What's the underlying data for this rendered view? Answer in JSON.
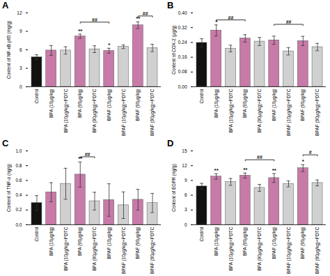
{
  "chart_data": [
    {
      "type": "bar",
      "title": "A",
      "ylabel": "Content of NF-κB p65 (mg/g)",
      "categories": [
        "Control",
        "BPA (10μg/kg)",
        "BPA (10μg/kg)+PDTC",
        "BPA (90μg/kg)",
        "BPA (90μg/kg)+PDTC",
        "BPAF (10μg/kg)",
        "BPAF (10μg/kg)+PDTC",
        "BPAF (90μg/kg)",
        "BPAF (90μg/kg)+PDTC"
      ],
      "values": [
        4.8,
        5.9,
        5.9,
        8.2,
        6.1,
        5.85,
        6.5,
        10.0,
        6.3
      ],
      "errors": [
        0.4,
        0.8,
        0.6,
        0.35,
        0.55,
        0.4,
        0.3,
        0.55,
        0.6
      ],
      "colors": [
        "#111111",
        "#c87aa8",
        "#d0d0d0",
        "#c87aa8",
        "#d0d0d0",
        "#c87aa8",
        "#d0d0d0",
        "#c87aa8",
        "#d0d0d0"
      ],
      "ylim": [
        0,
        12
      ],
      "yticks": [
        0,
        3,
        6,
        9,
        12
      ],
      "annotations": [
        {
          "text": "**",
          "category": "BPA (90μg/kg)"
        },
        {
          "text": "*",
          "category": "BPAF (10μg/kg)"
        },
        {
          "text": "**",
          "category": "BPAF (90μg/kg)"
        }
      ],
      "brackets": [
        {
          "from": "BPA (90μg/kg)",
          "to": "BPAF (10μg/kg)",
          "y": 10.5,
          "text": "##"
        },
        {
          "from": "BPAF (90μg/kg)",
          "to": "BPAF (90μg/kg)+PDTC",
          "y": 11.5,
          "text": "##"
        }
      ]
    },
    {
      "type": "bar",
      "title": "B",
      "ylabel": "Content of COX-2 (μg/g)",
      "categories": [
        "Control",
        "BPA (10μg/kg)",
        "BPA (10μg/kg)+PDTC",
        "BPA (90μg/kg)",
        "BPA (90μg/kg)+PDTC",
        "BPAF (10μg/kg)",
        "BPAF (10μg/kg)+PDTC",
        "BPAF (90μg/kg)",
        "BPAF (90μg/kg)+PDTC"
      ],
      "values": [
        0.238,
        0.305,
        0.207,
        0.262,
        0.245,
        0.252,
        0.192,
        0.248,
        0.215
      ],
      "errors": [
        0.022,
        0.03,
        0.018,
        0.02,
        0.022,
        0.022,
        0.02,
        0.025,
        0.02
      ],
      "colors": [
        "#111111",
        "#c87aa8",
        "#d0d0d0",
        "#c87aa8",
        "#d0d0d0",
        "#c87aa8",
        "#d0d0d0",
        "#c87aa8",
        "#d0d0d0"
      ],
      "ylim": [
        0,
        0.4
      ],
      "yticks": [
        {
          "value": 0,
          "label": "0.00"
        },
        {
          "value": 0.08,
          "label": "0.08"
        },
        {
          "value": 0.16,
          "label": "0.16"
        },
        {
          "value": 0.24,
          "label": "0.24"
        },
        {
          "value": 0.32,
          "label": "0.32"
        },
        {
          "value": 0.4,
          "label": "0.40"
        }
      ],
      "annotations": [
        {
          "text": "*",
          "category": "BPA (10μg/kg)"
        }
      ],
      "brackets": [
        {
          "from": "BPA (10μg/kg)",
          "to": "BPA (90μg/kg)",
          "y": 0.362,
          "text": "##"
        },
        {
          "from": "BPAF (10μg/kg)",
          "to": "BPAF (90μg/kg)",
          "y": 0.338,
          "text": "##"
        }
      ]
    },
    {
      "type": "bar",
      "title": "C",
      "ylabel": "Content of TNF-α (ng/g)",
      "categories": [
        "Control",
        "BPA (10μg/kg)",
        "BPA (10μg/kg)+PDTC",
        "BPA (90μg/kg)",
        "BPA (90μg/kg)+PDTC",
        "BPAF (10μg/kg)",
        "BPAF (10μg/kg)+PDTC",
        "BPAF (90μg/kg)",
        "BPAF (90μg/kg)+PDTC"
      ],
      "values": [
        0.295,
        0.44,
        0.555,
        0.68,
        0.32,
        0.335,
        0.265,
        0.34,
        0.295
      ],
      "errors": [
        0.1,
        0.13,
        0.21,
        0.17,
        0.12,
        0.22,
        0.18,
        0.14,
        0.13
      ],
      "colors": [
        "#111111",
        "#c87aa8",
        "#d0d0d0",
        "#c87aa8",
        "#d0d0d0",
        "#c87aa8",
        "#d0d0d0",
        "#c87aa8",
        "#d0d0d0"
      ],
      "ylim": [
        0,
        1.0
      ],
      "yticks": [
        {
          "value": 0,
          "label": "0.0"
        },
        0.2,
        0.4,
        0.6,
        0.8,
        {
          "value": 1,
          "label": "1.0"
        }
      ],
      "annotations": [
        {
          "text": "**",
          "category": "BPA (90μg/kg)"
        }
      ],
      "brackets": [
        {
          "from": "BPA (90μg/kg)",
          "to": "BPA (90μg/kg)+PDTC",
          "y": 0.92,
          "text": "##"
        }
      ]
    },
    {
      "type": "bar",
      "title": "D",
      "ylabel": "Content of EGFR (ng/g)",
      "categories": [
        "Control",
        "BPA (10μg/kg)",
        "BPA (10μg/kg)+PDTC",
        "BPA (90μg/kg)",
        "BPA (90μg/kg)+PDTC",
        "BPAF (10μg/kg)",
        "BPAF (10μg/kg)+PDTC",
        "BPAF (90μg/kg)",
        "BPAF (90μg/kg)+PDTC"
      ],
      "values": [
        7.8,
        9.8,
        8.7,
        10.0,
        7.5,
        9.5,
        8.3,
        11.5,
        8.5
      ],
      "errors": [
        0.6,
        0.55,
        0.7,
        0.5,
        0.7,
        0.9,
        0.6,
        0.7,
        0.6
      ],
      "colors": [
        "#111111",
        "#c87aa8",
        "#d0d0d0",
        "#c87aa8",
        "#d0d0d0",
        "#c87aa8",
        "#d0d0d0",
        "#c87aa8",
        "#d0d0d0"
      ],
      "ylim": [
        0,
        15
      ],
      "yticks": [
        0,
        3,
        6,
        9,
        12,
        15
      ],
      "annotations": [
        {
          "text": "**",
          "category": "BPA (10μg/kg)"
        },
        {
          "text": "**",
          "category": "BPA (90μg/kg)"
        },
        {
          "text": "**",
          "category": "BPAF (10μg/kg)"
        },
        {
          "text": "*",
          "category": "BPAF (90μg/kg)"
        }
      ],
      "brackets": [
        {
          "from": "BPA (90μg/kg)",
          "to": "BPAF (10μg/kg)",
          "y": 13.2,
          "text": "##"
        },
        {
          "from": "BPAF (90μg/kg)",
          "to": "BPAF (90μg/kg)+PDTC",
          "y": 14.2,
          "text": "#"
        }
      ]
    }
  ]
}
